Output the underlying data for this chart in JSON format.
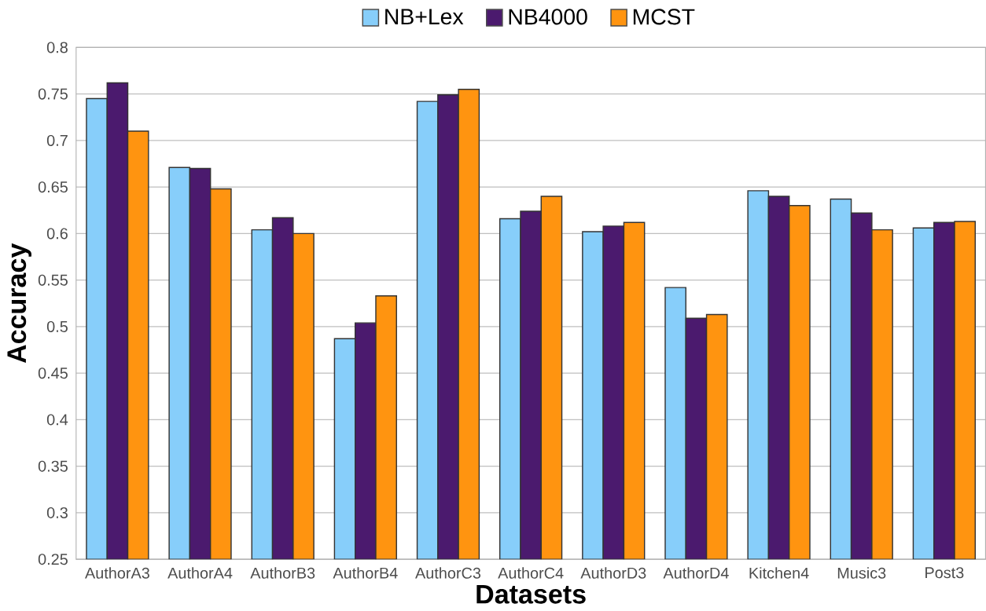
{
  "chart_data": {
    "type": "bar",
    "xlabel": "Datasets",
    "ylabel": "Accuracy",
    "categories": [
      "AuthorA3",
      "AuthorA4",
      "AuthorB3",
      "AuthorB4",
      "AuthorC3",
      "AuthorC4",
      "AuthorD3",
      "AuthorD4",
      "Kitchen4",
      "Music3",
      "Post3"
    ],
    "series": [
      {
        "name": "NB+Lex",
        "color": "#87cefa",
        "values": [
          0.745,
          0.671,
          0.604,
          0.487,
          0.742,
          0.616,
          0.602,
          0.542,
          0.646,
          0.637,
          0.606
        ]
      },
      {
        "name": "NB4000",
        "color": "#4b1a6e",
        "values": [
          0.762,
          0.67,
          0.617,
          0.504,
          0.749,
          0.624,
          0.608,
          0.509,
          0.64,
          0.622,
          0.612
        ]
      },
      {
        "name": "MCST",
        "color": "#ff9410",
        "values": [
          0.71,
          0.648,
          0.6,
          0.533,
          0.755,
          0.64,
          0.612,
          0.513,
          0.63,
          0.604,
          0.613
        ]
      }
    ],
    "ylim": [
      0.25,
      0.8
    ],
    "yticks": [
      0.25,
      0.3,
      0.35,
      0.4,
      0.45,
      0.5,
      0.55,
      0.6,
      0.65,
      0.7,
      0.75,
      0.8
    ],
    "grid": "y",
    "legend": "top"
  }
}
